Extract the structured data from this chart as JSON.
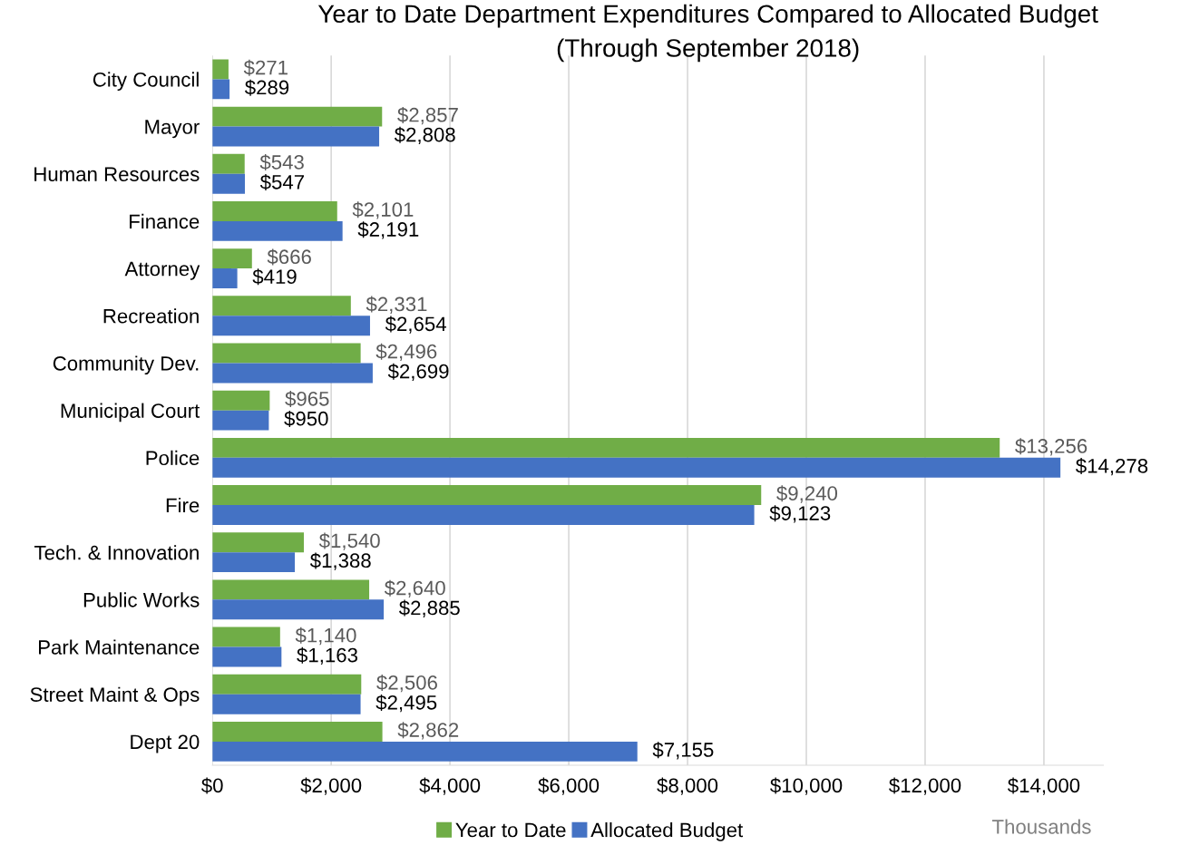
{
  "chart_data": {
    "type": "bar",
    "orientation": "horizontal",
    "title": "Year to Date Department Expenditures Compared to Allocated Budget",
    "subtitle": "(Through September 2018)",
    "categories": [
      "City Council",
      "Mayor",
      "Human Resources",
      "Finance",
      "Attorney",
      "Recreation",
      "Community Dev.",
      "Municipal Court",
      "Police",
      "Fire",
      "Tech. & Innovation",
      "Public Works",
      "Park Maintenance",
      "Street Maint & Ops",
      "Dept 20"
    ],
    "series": [
      {
        "name": "Year to Date",
        "color": "#70ad47",
        "values": [
          271,
          2857,
          543,
          2101,
          666,
          2331,
          2496,
          965,
          13256,
          9240,
          1540,
          2640,
          1140,
          2506,
          2862
        ],
        "value_labels": [
          "$271",
          "$2,857",
          "$543",
          "$2,101",
          "$666",
          "$2,331",
          "$2,496",
          "$965",
          "$13,256",
          "$9,240",
          "$1,540",
          "$2,640",
          "$1,140",
          "$2,506",
          "$2,862"
        ]
      },
      {
        "name": "Allocated Budget",
        "color": "#4472c4",
        "values": [
          289,
          2808,
          547,
          2191,
          419,
          2654,
          2699,
          950,
          14278,
          9123,
          1388,
          2885,
          1163,
          2495,
          7155
        ],
        "value_labels": [
          "$289",
          "$2,808",
          "$547",
          "$2,191",
          "$419",
          "$2,654",
          "$2,699",
          "$950",
          "$14,278",
          "$9,123",
          "$1,388",
          "$2,885",
          "$1,163",
          "$2,495",
          "$7,155"
        ]
      }
    ],
    "xlim": [
      0,
      15000
    ],
    "xticks": [
      {
        "value": 0,
        "label": "$0"
      },
      {
        "value": 2000,
        "label": "$2,000"
      },
      {
        "value": 4000,
        "label": "$4,000"
      },
      {
        "value": 6000,
        "label": "$6,000"
      },
      {
        "value": 8000,
        "label": "$8,000"
      },
      {
        "value": 10000,
        "label": "$10,000"
      },
      {
        "value": 12000,
        "label": "$12,000"
      },
      {
        "value": 14000,
        "label": "$14,000"
      }
    ],
    "annotations": [
      "Thousands"
    ],
    "grid": "x",
    "legend": "bottom"
  }
}
